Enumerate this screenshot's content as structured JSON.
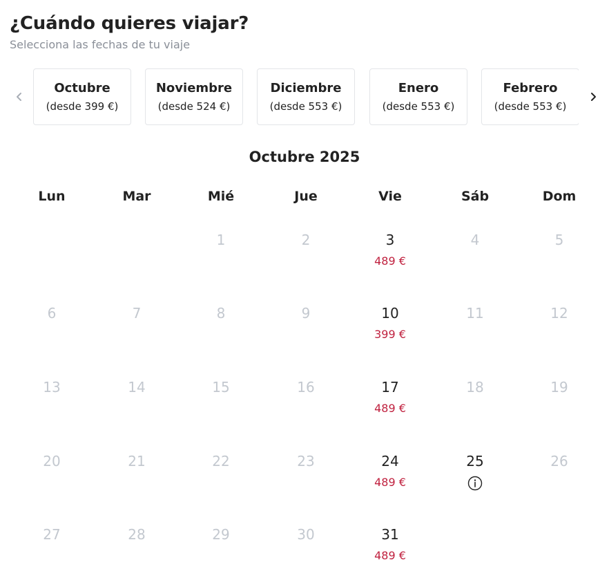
{
  "header": {
    "title": "¿Cuándo quieres viajar?",
    "subtitle": "Selecciona las fechas de tu viaje"
  },
  "month_selector": {
    "months": [
      {
        "name": "Octubre",
        "price": "(desde 399 €)"
      },
      {
        "name": "Noviembre",
        "price": "(desde 524 €)"
      },
      {
        "name": "Diciembre",
        "price": "(desde 553 €)"
      },
      {
        "name": "Enero",
        "price": "(desde 553 €)"
      },
      {
        "name": "Febrero",
        "price": "(desde 553 €)"
      }
    ],
    "prev_icon": "chevron-left-icon",
    "next_icon": "chevron-right-icon"
  },
  "calendar": {
    "title": "Octubre 2025",
    "weekdays": [
      "Lun",
      "Mar",
      "Mié",
      "Jue",
      "Vie",
      "Sáb",
      "Dom"
    ],
    "weeks": [
      [
        null,
        null,
        {
          "day": "1"
        },
        {
          "day": "2"
        },
        {
          "day": "3",
          "available": true,
          "price": "489 €"
        },
        {
          "day": "4"
        },
        {
          "day": "5"
        }
      ],
      [
        {
          "day": "6"
        },
        {
          "day": "7"
        },
        {
          "day": "8"
        },
        {
          "day": "9"
        },
        {
          "day": "10",
          "available": true,
          "price": "399 €"
        },
        {
          "day": "11"
        },
        {
          "day": "12"
        }
      ],
      [
        {
          "day": "13"
        },
        {
          "day": "14"
        },
        {
          "day": "15"
        },
        {
          "day": "16"
        },
        {
          "day": "17",
          "available": true,
          "price": "489 €"
        },
        {
          "day": "18"
        },
        {
          "day": "19"
        }
      ],
      [
        {
          "day": "20"
        },
        {
          "day": "21"
        },
        {
          "day": "22"
        },
        {
          "day": "23"
        },
        {
          "day": "24",
          "available": true,
          "price": "489 €"
        },
        {
          "day": "25",
          "available": true,
          "info": true
        },
        {
          "day": "26"
        }
      ],
      [
        {
          "day": "27"
        },
        {
          "day": "28"
        },
        {
          "day": "29"
        },
        {
          "day": "30"
        },
        {
          "day": "31",
          "available": true,
          "price": "489 €"
        },
        null,
        null
      ]
    ],
    "colors": {
      "price": "#c0213f",
      "disabled_day": "#c3c8cf",
      "available_day": "#222222"
    }
  }
}
